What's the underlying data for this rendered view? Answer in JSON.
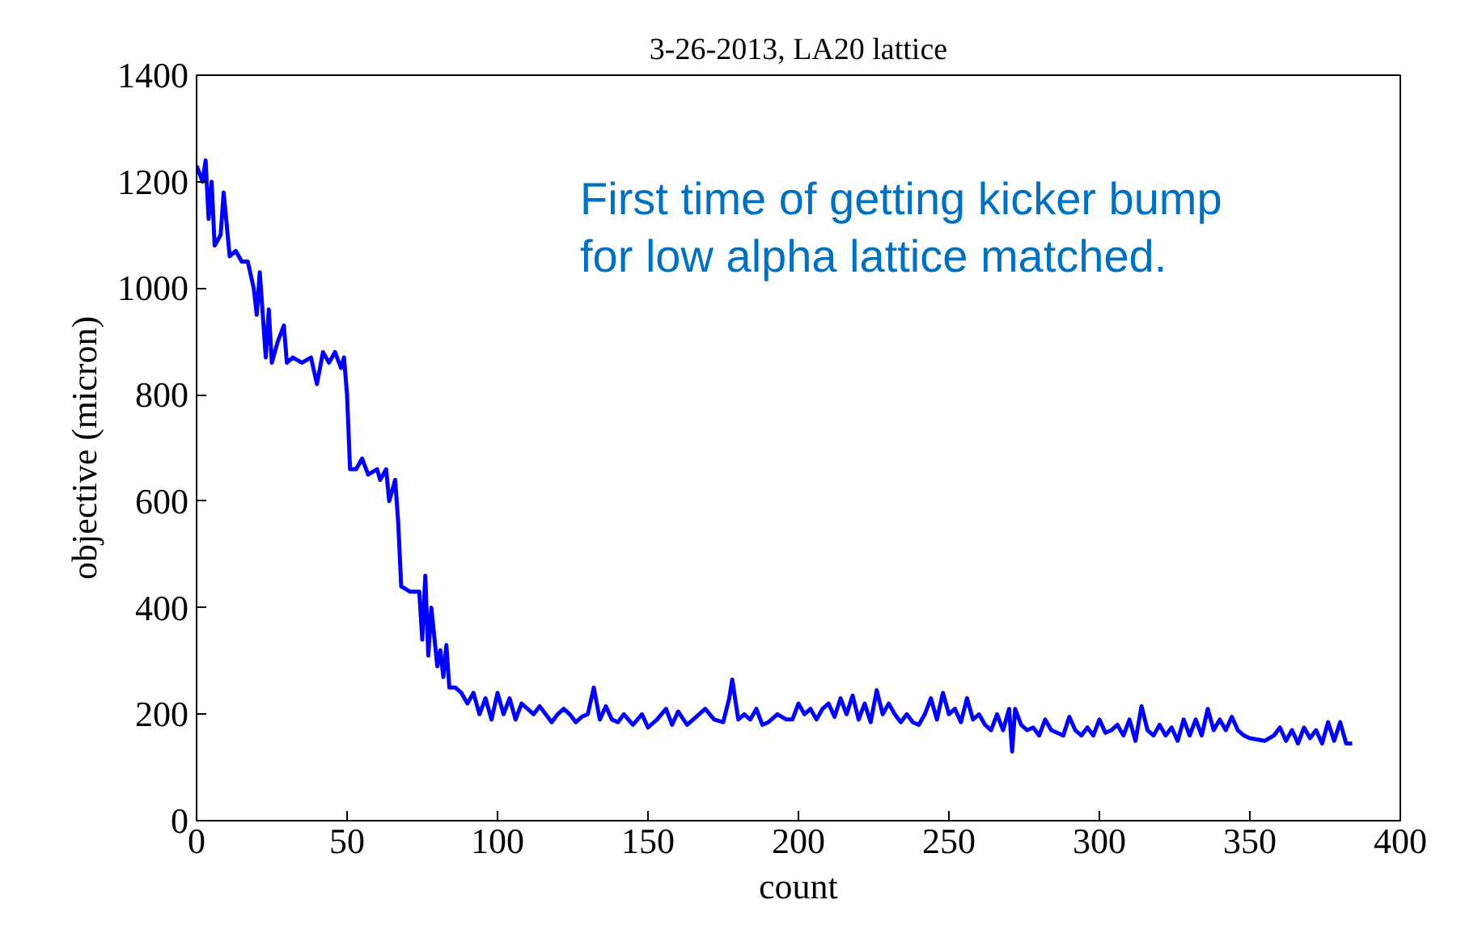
{
  "chart_data": {
    "type": "line",
    "title": "3-26-2013, LA20 lattice",
    "xlabel": "count",
    "ylabel": "objective (micron)",
    "annotations": [
      "First time of getting kicker bump\nfor low alpha lattice matched."
    ],
    "xlim": [
      0,
      400
    ],
    "ylim": [
      0,
      1400
    ],
    "xticks": [
      0,
      50,
      100,
      150,
      200,
      250,
      300,
      350,
      400
    ],
    "yticks": [
      0,
      200,
      400,
      600,
      800,
      1000,
      1200,
      1400
    ],
    "grid": false,
    "marker": "none",
    "line_style": "solid",
    "series": [
      {
        "color": "#0000ff",
        "x": [
          0,
          2,
          3,
          4,
          5,
          6,
          8,
          9,
          11,
          13,
          15,
          17,
          19,
          20,
          21,
          23,
          24,
          25,
          27,
          29,
          30,
          32,
          35,
          38,
          40,
          42,
          44,
          46,
          48,
          49,
          50,
          51,
          53,
          55,
          57,
          60,
          61,
          63,
          64,
          66,
          67,
          68,
          71,
          74,
          75,
          76,
          77,
          78,
          80,
          81,
          82,
          83,
          84,
          86,
          88,
          90,
          92,
          94,
          96,
          98,
          100,
          102,
          104,
          106,
          108,
          110,
          112,
          114,
          116,
          118,
          120,
          122,
          124,
          126,
          128,
          130,
          132,
          134,
          136,
          138,
          140,
          142,
          145,
          148,
          150,
          153,
          156,
          158,
          160,
          163,
          166,
          169,
          172,
          175,
          177,
          178,
          180,
          182,
          184,
          186,
          188,
          190,
          193,
          196,
          198,
          200,
          202,
          204,
          206,
          208,
          210,
          212,
          214,
          216,
          218,
          220,
          222,
          224,
          226,
          228,
          230,
          232,
          234,
          236,
          238,
          240,
          242,
          244,
          246,
          248,
          250,
          252,
          254,
          256,
          258,
          260,
          262,
          264,
          266,
          268,
          270,
          271,
          272,
          274,
          276,
          278,
          280,
          282,
          284,
          286,
          288,
          290,
          292,
          294,
          296,
          298,
          300,
          302,
          304,
          306,
          308,
          310,
          312,
          314,
          316,
          318,
          320,
          322,
          324,
          326,
          328,
          330,
          332,
          334,
          336,
          338,
          340,
          342,
          344,
          346,
          348,
          350,
          355,
          358,
          360,
          362,
          364,
          366,
          368,
          370,
          372,
          374,
          376,
          378,
          380,
          382,
          384
        ],
        "values": [
          1230,
          1200,
          1240,
          1130,
          1200,
          1080,
          1100,
          1180,
          1060,
          1070,
          1050,
          1050,
          1000,
          950,
          1030,
          870,
          960,
          860,
          900,
          930,
          860,
          870,
          860,
          870,
          820,
          880,
          860,
          880,
          850,
          870,
          800,
          660,
          660,
          680,
          650,
          660,
          640,
          660,
          600,
          640,
          560,
          440,
          430,
          430,
          340,
          460,
          310,
          400,
          290,
          320,
          270,
          330,
          250,
          250,
          240,
          220,
          240,
          200,
          230,
          190,
          240,
          200,
          230,
          190,
          220,
          210,
          200,
          215,
          200,
          185,
          200,
          210,
          200,
          185,
          195,
          200,
          250,
          190,
          215,
          190,
          185,
          200,
          180,
          200,
          175,
          190,
          210,
          180,
          205,
          180,
          195,
          210,
          190,
          185,
          230,
          265,
          190,
          200,
          190,
          210,
          180,
          185,
          200,
          190,
          190,
          220,
          200,
          210,
          190,
          210,
          220,
          195,
          230,
          200,
          235,
          190,
          220,
          185,
          245,
          200,
          220,
          200,
          185,
          200,
          185,
          180,
          200,
          230,
          190,
          240,
          200,
          210,
          185,
          230,
          190,
          200,
          180,
          170,
          200,
          170,
          210,
          130,
          210,
          180,
          170,
          175,
          160,
          190,
          170,
          165,
          160,
          195,
          170,
          160,
          175,
          160,
          190,
          165,
          170,
          180,
          160,
          190,
          150,
          215,
          170,
          160,
          180,
          160,
          175,
          150,
          190,
          160,
          190,
          160,
          210,
          170,
          190,
          170,
          195,
          170,
          160,
          155,
          150,
          160,
          175,
          150,
          170,
          145,
          175,
          155,
          170,
          145,
          185,
          150,
          185,
          145,
          145
        ]
      }
    ]
  }
}
